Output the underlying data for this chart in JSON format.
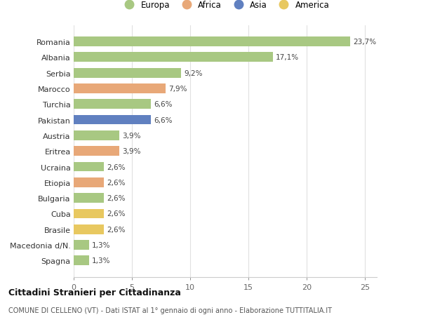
{
  "countries": [
    "Spagna",
    "Macedonia d/N.",
    "Brasile",
    "Cuba",
    "Bulgaria",
    "Etiopia",
    "Ucraina",
    "Eritrea",
    "Austria",
    "Pakistan",
    "Turchia",
    "Marocco",
    "Serbia",
    "Albania",
    "Romania"
  ],
  "values": [
    1.3,
    1.3,
    2.6,
    2.6,
    2.6,
    2.6,
    2.6,
    3.9,
    3.9,
    6.6,
    6.6,
    7.9,
    9.2,
    17.1,
    23.7
  ],
  "labels": [
    "1,3%",
    "1,3%",
    "2,6%",
    "2,6%",
    "2,6%",
    "2,6%",
    "2,6%",
    "3,9%",
    "3,9%",
    "6,6%",
    "6,6%",
    "7,9%",
    "9,2%",
    "17,1%",
    "23,7%"
  ],
  "continents": [
    "Europa",
    "Europa",
    "America",
    "America",
    "Europa",
    "Africa",
    "Europa",
    "Africa",
    "Europa",
    "Asia",
    "Europa",
    "Africa",
    "Europa",
    "Europa",
    "Europa"
  ],
  "continent_colors": {
    "Europa": "#a8c882",
    "Africa": "#e8a878",
    "Asia": "#6080c0",
    "America": "#e8c860"
  },
  "legend_order": [
    "Europa",
    "Africa",
    "Asia",
    "America"
  ],
  "legend_colors": [
    "#a8c882",
    "#e8a878",
    "#6080c0",
    "#e8c860"
  ],
  "background_color": "#ffffff",
  "plot_bg_color": "#ffffff",
  "grid_color": "#e0e0e0",
  "title": "Cittadini Stranieri per Cittadinanza",
  "subtitle": "COMUNE DI CELLENO (VT) - Dati ISTAT al 1° gennaio di ogni anno - Elaborazione TUTTITALIA.IT",
  "xlim": [
    0,
    26
  ],
  "xticks": [
    0,
    5,
    10,
    15,
    20,
    25
  ],
  "bar_height": 0.62,
  "figsize": [
    6.0,
    4.6
  ],
  "dpi": 100
}
